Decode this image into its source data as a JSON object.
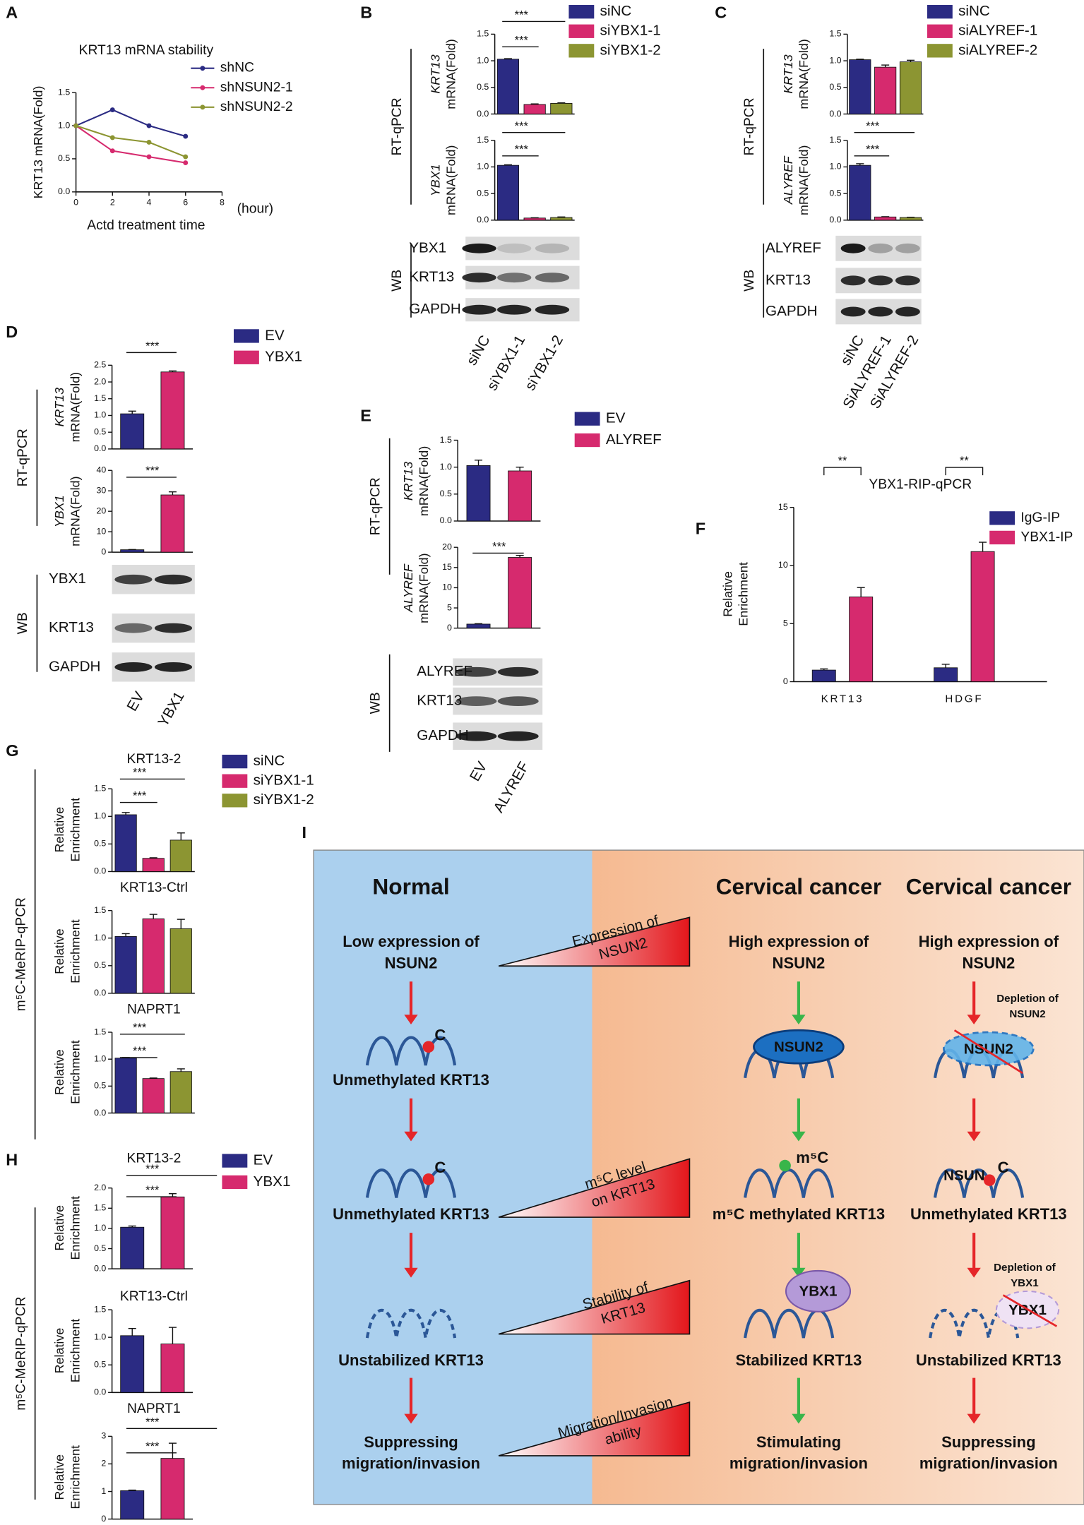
{
  "panel_labels": [
    "A",
    "B",
    "C",
    "D",
    "E",
    "F",
    "G",
    "H",
    "I"
  ],
  "side_labels": [
    "RT-qPCR",
    "WB",
    "RT-qPCR",
    "WB",
    "RT-qPCR",
    "WB",
    "RT-qPCR",
    "WB",
    "m⁵C-MeRIP-qPCR",
    "m⁵C-MeRIP-qPCR"
  ],
  "chart_data": [
    {
      "type": "line",
      "title": "KRT13 mRNA stability",
      "ylabel": "KRT13 mRNA(Fold)",
      "xlabel": "Actd treatment time",
      "annotations": [
        "(hour)"
      ],
      "x": [
        0,
        2,
        4,
        6
      ],
      "xlim": [
        0,
        8
      ],
      "xticks": [
        0,
        2,
        4,
        6,
        8
      ],
      "ylim": [
        0,
        1.5
      ],
      "yticks": [
        {
          "value": 0,
          "label": "0.0"
        },
        0.5,
        {
          "value": 1,
          "label": "1.0"
        },
        1.5
      ],
      "series": [
        {
          "name": "shNC",
          "color": "#2b2b83",
          "values": [
            1.0,
            1.24,
            1.0,
            0.84
          ]
        },
        {
          "name": "shNSUN2-1",
          "color": "#d62a6e",
          "values": [
            1.0,
            0.62,
            0.53,
            0.44
          ]
        },
        {
          "name": "shNSUN2-2",
          "color": "#8c9532",
          "values": [
            1.0,
            0.82,
            0.75,
            0.53
          ]
        }
      ],
      "legend": "upper right"
    },
    {
      "type": "bar",
      "ylabel": [
        "KRT13",
        "mRNA(Fold)"
      ],
      "categories": [
        "siNC",
        "siYBX1-1",
        "siYBX1-2"
      ],
      "colors": [
        "#2b2b83",
        "#d62a6e",
        "#8c9532"
      ],
      "values": [
        1.03,
        0.18,
        0.2
      ],
      "errors": [
        0.01,
        0.01,
        0.01
      ],
      "ylim": [
        0,
        1.5
      ],
      "yticks": [
        {
          "value": 0,
          "label": "0.0"
        },
        0.5,
        {
          "value": 1,
          "label": "1.0"
        },
        1.5
      ],
      "annotations": [
        "***",
        "***"
      ],
      "legend": "right"
    },
    {
      "type": "bar",
      "ylabel": [
        "YBX1",
        "mRNA(Fold)"
      ],
      "colors": [
        "#2b2b83",
        "#d62a6e",
        "#8c9532"
      ],
      "values": [
        1.03,
        0.04,
        0.05
      ],
      "errors": [
        0.01,
        0.005,
        0.01
      ],
      "ylim": [
        0,
        1.5
      ],
      "yticks": [
        {
          "value": 0,
          "label": "0.0"
        },
        0.5,
        {
          "value": 1,
          "label": "1.0"
        },
        1.5
      ],
      "annotations": [
        "***",
        "***"
      ]
    },
    {
      "type": "bar",
      "ylabel": [
        "KRT13",
        "mRNA(Fold)"
      ],
      "categories": [
        "siNC",
        "siALYREF-1",
        "siALYREF-2"
      ],
      "colors": [
        "#2b2b83",
        "#d62a6e",
        "#8c9532"
      ],
      "values": [
        1.02,
        0.88,
        0.98
      ],
      "errors": [
        0.01,
        0.04,
        0.03
      ],
      "ylim": [
        0,
        1.5
      ],
      "yticks": [
        {
          "value": 0,
          "label": "0.0"
        },
        0.5,
        {
          "value": 1,
          "label": "1.0"
        },
        1.5
      ],
      "legend": "right"
    },
    {
      "type": "bar",
      "ylabel": [
        "ALYREF",
        "mRNA(Fold)"
      ],
      "colors": [
        "#2b2b83",
        "#d62a6e",
        "#8c9532"
      ],
      "values": [
        1.03,
        0.06,
        0.05
      ],
      "errors": [
        0.03,
        0.005,
        0.005
      ],
      "ylim": [
        0,
        1.5
      ],
      "yticks": [
        {
          "value": 0,
          "label": "0.0"
        },
        0.5,
        {
          "value": 1,
          "label": "1.0"
        },
        1.5
      ],
      "annotations": [
        "***",
        "***"
      ]
    },
    {
      "type": "bar",
      "ylabel": [
        "KRT13",
        "mRNA(Fold)"
      ],
      "categories": [
        "EV",
        "YBX1"
      ],
      "colors": [
        "#2b2b83",
        "#d62a6e"
      ],
      "values": [
        1.05,
        2.3
      ],
      "errors": [
        0.08,
        0.03
      ],
      "ylim": [
        0,
        2.5
      ],
      "yticks": [
        {
          "value": 0,
          "label": "0.0"
        },
        0.5,
        {
          "value": 1,
          "label": "1.0"
        },
        1.5,
        {
          "value": 2,
          "label": "2.0"
        },
        2.5
      ],
      "annotations": [
        "***"
      ],
      "legend": "right"
    },
    {
      "type": "bar",
      "ylabel": [
        "YBX1",
        "mRNA(Fold)"
      ],
      "colors": [
        "#2b2b83",
        "#d62a6e"
      ],
      "values": [
        1.2,
        28
      ],
      "errors": [
        0.1,
        1.5
      ],
      "ylim": [
        0,
        40
      ],
      "yticks": [
        0,
        10,
        20,
        30,
        40
      ],
      "annotations": [
        "***"
      ]
    },
    {
      "type": "bar",
      "ylabel": [
        "KRT13",
        "mRNA(Fold)"
      ],
      "categories": [
        "EV",
        "ALYREF"
      ],
      "colors": [
        "#2b2b83",
        "#d62a6e"
      ],
      "values": [
        1.03,
        0.93
      ],
      "errors": [
        0.1,
        0.07
      ],
      "ylim": [
        0,
        1.5
      ],
      "yticks": [
        {
          "value": 0,
          "label": "0.0"
        },
        0.5,
        {
          "value": 1,
          "label": "1.0"
        },
        1.5
      ],
      "legend": "right"
    },
    {
      "type": "bar",
      "ylabel": [
        "ALYREF",
        "mRNA(Fold)"
      ],
      "colors": [
        "#2b2b83",
        "#d62a6e"
      ],
      "values": [
        1.0,
        17.5
      ],
      "errors": [
        0.1,
        0.5
      ],
      "ylim": [
        0,
        20
      ],
      "yticks": [
        0,
        5,
        10,
        15,
        20
      ],
      "annotations": [
        "***"
      ]
    },
    {
      "type": "bar",
      "title": "YBX1-RIP-qPCR",
      "ylabel": [
        "Relative",
        "Enrichment"
      ],
      "categories": [
        "KRT13",
        "HDGF"
      ],
      "series": [
        {
          "name": "IgG-IP",
          "color": "#2b2b83",
          "values": [
            1.0,
            1.2
          ],
          "errors": [
            0.1,
            0.3
          ]
        },
        {
          "name": "YBX1-IP",
          "color": "#d62a6e",
          "values": [
            7.3,
            11.2
          ],
          "errors": [
            0.8,
            0.8
          ]
        }
      ],
      "ylim": [
        0,
        15
      ],
      "yticks": [
        0,
        5,
        10,
        15
      ],
      "annotations": [
        "**",
        "**"
      ],
      "legend": "upper right"
    },
    {
      "type": "bar",
      "title": "KRT13-2",
      "ylabel": [
        "Relative",
        "Enrichment"
      ],
      "categories": [
        "siNC",
        "siYBX1-1",
        "siYBX1-2"
      ],
      "colors": [
        "#2b2b83",
        "#d62a6e",
        "#8c9532"
      ],
      "values": [
        1.03,
        0.24,
        0.57
      ],
      "errors": [
        0.04,
        0.01,
        0.13
      ],
      "ylim": [
        0,
        1.5
      ],
      "yticks": [
        {
          "value": 0,
          "label": "0.0"
        },
        0.5,
        {
          "value": 1,
          "label": "1.0"
        },
        1.5
      ],
      "annotations": [
        "***",
        "***"
      ],
      "legend": "right"
    },
    {
      "type": "bar",
      "title": "KRT13-Ctrl",
      "ylabel": [
        "Relative",
        "Enrichment"
      ],
      "colors": [
        "#2b2b83",
        "#d62a6e",
        "#8c9532"
      ],
      "values": [
        1.03,
        1.35,
        1.17
      ],
      "errors": [
        0.05,
        0.08,
        0.17
      ],
      "ylim": [
        0,
        1.5
      ],
      "yticks": [
        {
          "value": 0,
          "label": "0.0"
        },
        0.5,
        {
          "value": 1,
          "label": "1.0"
        },
        1.5
      ]
    },
    {
      "type": "bar",
      "title": "NAPRT1",
      "ylabel": [
        "Relative",
        "Enrichment"
      ],
      "colors": [
        "#2b2b83",
        "#d62a6e",
        "#8c9532"
      ],
      "values": [
        1.02,
        0.64,
        0.77
      ],
      "errors": [
        0.01,
        0.01,
        0.05
      ],
      "ylim": [
        0,
        1.5
      ],
      "yticks": [
        {
          "value": 0,
          "label": "0.0"
        },
        0.5,
        {
          "value": 1,
          "label": "1.0"
        },
        1.5
      ],
      "annotations": [
        "***",
        "***"
      ]
    },
    {
      "type": "bar",
      "title": "KRT13-2",
      "ylabel": [
        "Relative",
        "Enrichment"
      ],
      "categories": [
        "EV",
        "YBX1"
      ],
      "colors": [
        "#2b2b83",
        "#d62a6e"
      ],
      "values": [
        1.03,
        1.78
      ],
      "errors": [
        0.03,
        0.08
      ],
      "ylim": [
        0,
        2
      ],
      "yticks": [
        {
          "value": 0,
          "label": "0.0"
        },
        0.5,
        {
          "value": 1,
          "label": "1.0"
        },
        1.5,
        {
          "value": 2,
          "label": "2.0"
        }
      ],
      "annotations": [
        "***",
        "***"
      ],
      "legend": "right"
    },
    {
      "type": "bar",
      "title": "KRT13-Ctrl",
      "ylabel": [
        "Relative",
        "Enrichment"
      ],
      "colors": [
        "#2b2b83",
        "#d62a6e"
      ],
      "values": [
        1.03,
        0.88
      ],
      "errors": [
        0.13,
        0.3
      ],
      "ylim": [
        0,
        1.5
      ],
      "yticks": [
        {
          "value": 0,
          "label": "0.0"
        },
        0.5,
        {
          "value": 1,
          "label": "1.0"
        },
        1.5
      ]
    },
    {
      "type": "bar",
      "title": "NAPRT1",
      "ylabel": [
        "Relative",
        "Enrichment"
      ],
      "colors": [
        "#2b2b83",
        "#d62a6e"
      ],
      "values": [
        1.03,
        2.2
      ],
      "errors": [
        0.02,
        0.55
      ],
      "ylim": [
        0,
        3
      ],
      "yticks": [
        0,
        1,
        2,
        3
      ],
      "annotations": [
        "***",
        "***"
      ]
    }
  ],
  "blots": [
    {
      "rows": [
        "YBX1",
        "KRT13",
        "GAPDH"
      ],
      "lanes": [
        "siNC",
        "siYBX1-1",
        "siYBX1-2"
      ]
    },
    {
      "rows": [
        "ALYREF",
        "KRT13",
        "GAPDH"
      ],
      "lanes": [
        "siNC",
        "SiALYREF-1",
        "SiALYREF-2"
      ]
    },
    {
      "rows": [
        "YBX1",
        "KRT13",
        "GAPDH"
      ],
      "lanes": [
        "EV",
        "YBX1"
      ]
    },
    {
      "rows": [
        "ALYREF",
        "KRT13",
        "GAPDH"
      ],
      "lanes": [
        "EV",
        "ALYREF"
      ]
    }
  ],
  "diagram": {
    "columns": [
      "Normal",
      "Cervical cancer",
      "Cervical cancer"
    ],
    "gradients": [
      [
        "Expression of",
        "NSUN2"
      ],
      [
        "m⁵C level",
        "on KRT13"
      ],
      [
        "Stability of",
        "KRT13"
      ],
      [
        "Migration/Invasion",
        "ability"
      ]
    ],
    "normal": [
      [
        "Low expression of",
        "NSUN2"
      ],
      "C",
      "Unmethylated KRT13",
      "C",
      "Unmethylated KRT13",
      "Unstabilized KRT13",
      [
        "Suppressing",
        "migration/invasion"
      ]
    ],
    "cancer": [
      [
        "High expression of",
        "NSUN2"
      ],
      "NSUN2",
      "m⁵C",
      "m⁵C methylated KRT13",
      "YBX1",
      "Stabilized KRT13",
      [
        "Stimulating",
        "migration/invasion"
      ]
    ],
    "depletion": [
      [
        "High expression of",
        "NSUN2"
      ],
      [
        "Depletion of",
        "NSUN2"
      ],
      "NSUN2",
      "NSUN",
      "C",
      "Unmethylated KRT13",
      [
        "Depletion of",
        "YBX1"
      ],
      "YBX1",
      "Unstabilized KRT13",
      [
        "Suppressing",
        "migration/invasion"
      ]
    ]
  }
}
